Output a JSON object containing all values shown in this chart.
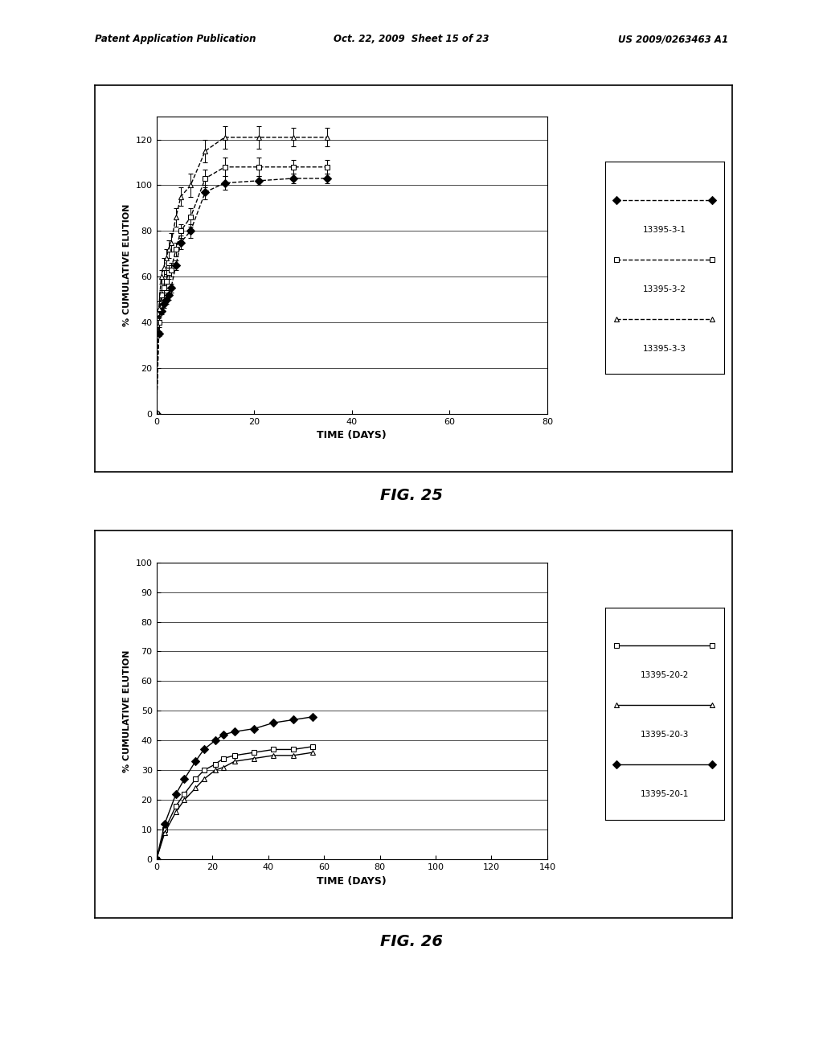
{
  "fig25": {
    "xlabel": "TIME (DAYS)",
    "ylabel": "% CUMULATIVE ELUTION",
    "xlim": [
      0,
      80
    ],
    "ylim": [
      0,
      130
    ],
    "yticks": [
      0,
      20,
      40,
      60,
      80,
      100,
      120
    ],
    "xticks": [
      0,
      20,
      40,
      60,
      80
    ],
    "series": [
      {
        "label": "13395-3-1",
        "x": [
          0,
          0.5,
          1,
          1.5,
          2,
          2.5,
          3,
          4,
          5,
          7,
          10,
          14,
          21,
          28,
          35
        ],
        "y": [
          0,
          35,
          45,
          48,
          50,
          52,
          55,
          65,
          75,
          80,
          97,
          101,
          102,
          103,
          103
        ],
        "yerr": [
          0,
          1,
          1.5,
          1.5,
          2,
          2,
          2,
          2,
          3,
          3,
          3,
          3,
          2,
          2,
          2
        ],
        "marker": "D",
        "fillstyle": "full",
        "linestyle": "dashed",
        "color": "black"
      },
      {
        "label": "13395-3-2",
        "x": [
          0,
          0.5,
          1,
          1.5,
          2,
          2.5,
          3,
          4,
          5,
          7,
          10,
          14,
          21,
          28,
          35
        ],
        "y": [
          0,
          40,
          52,
          55,
          58,
          62,
          63,
          72,
          80,
          86,
          103,
          108,
          108,
          108,
          108
        ],
        "yerr": [
          0,
          2,
          2,
          2,
          3,
          3,
          3,
          3,
          3,
          4,
          4,
          4,
          4,
          3,
          3
        ],
        "marker": "s",
        "fillstyle": "none",
        "linestyle": "dashed",
        "color": "black"
      },
      {
        "label": "13395-3-3",
        "x": [
          0,
          0.5,
          1,
          1.5,
          2,
          2.5,
          3,
          4,
          5,
          7,
          10,
          14,
          21,
          28,
          35
        ],
        "y": [
          0,
          46,
          60,
          64,
          68,
          72,
          75,
          86,
          95,
          100,
          115,
          121,
          121,
          121,
          121
        ],
        "yerr": [
          0,
          3,
          3,
          4,
          4,
          4,
          4,
          4,
          4,
          5,
          5,
          5,
          5,
          4,
          4
        ],
        "marker": "^",
        "fillstyle": "none",
        "linestyle": "dashed",
        "color": "black"
      }
    ]
  },
  "fig26": {
    "xlabel": "TIME (DAYS)",
    "ylabel": "% CUMULATIVE ELUTION",
    "xlim": [
      0,
      140
    ],
    "ylim": [
      0,
      100
    ],
    "yticks": [
      0,
      10,
      20,
      30,
      40,
      50,
      60,
      70,
      80,
      90,
      100
    ],
    "xticks": [
      0,
      20,
      40,
      60,
      80,
      100,
      120,
      140
    ],
    "series": [
      {
        "label": "13395-20-2",
        "x": [
          0,
          3,
          7,
          10,
          14,
          17,
          21,
          24,
          28,
          35,
          42,
          49,
          56
        ],
        "y": [
          0,
          10,
          18,
          22,
          27,
          30,
          32,
          34,
          35,
          36,
          37,
          37,
          38
        ],
        "marker": "s",
        "fillstyle": "none",
        "linestyle": "solid",
        "color": "black"
      },
      {
        "label": "13395-20-3",
        "x": [
          0,
          3,
          7,
          10,
          14,
          17,
          21,
          24,
          28,
          35,
          42,
          49,
          56
        ],
        "y": [
          0,
          9,
          16,
          20,
          24,
          27,
          30,
          31,
          33,
          34,
          35,
          35,
          36
        ],
        "marker": "^",
        "fillstyle": "none",
        "linestyle": "solid",
        "color": "black"
      },
      {
        "label": "13395-20-1",
        "x": [
          0,
          3,
          7,
          10,
          14,
          17,
          21,
          24,
          28,
          35,
          42,
          49,
          56
        ],
        "y": [
          0,
          12,
          22,
          27,
          33,
          37,
          40,
          42,
          43,
          44,
          46,
          47,
          48
        ],
        "marker": "D",
        "fillstyle": "full",
        "linestyle": "solid",
        "color": "black"
      }
    ]
  },
  "header_left": "Patent Application Publication",
  "header_center": "Oct. 22, 2009  Sheet 15 of 23",
  "header_right": "US 2009/0263463 A1",
  "fig25_label": "FIG. 25",
  "fig26_label": "FIG. 26",
  "background_color": "#ffffff"
}
